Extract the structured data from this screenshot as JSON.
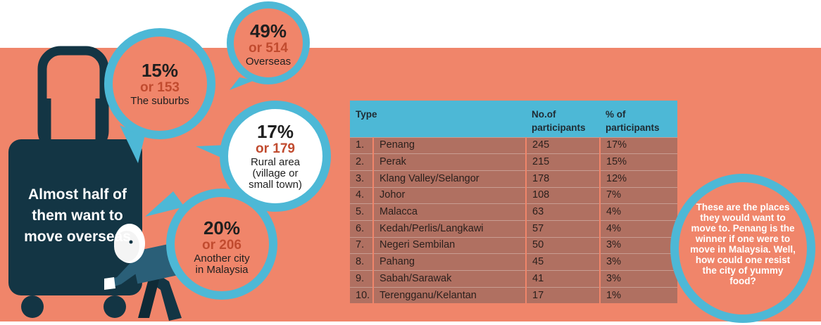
{
  "headline": "Almost half of them want to move overseas",
  "colors": {
    "band": "#f0856a",
    "accent": "#4db8d6",
    "suitcase": "#133544",
    "table_rows": "#b07061"
  },
  "bubbles": {
    "overseas": {
      "pct": "49%",
      "count": "or 514",
      "label": "Overseas"
    },
    "suburbs": {
      "pct": "15%",
      "count": "or 153",
      "label": "The suburbs"
    },
    "rural": {
      "pct": "17%",
      "count": "or 179",
      "label1": "Rural area",
      "label2": "(village or",
      "label3": "small town)"
    },
    "city": {
      "pct": "20%",
      "count": "or 206",
      "label1": "Another city",
      "label2": "in Malaysia"
    }
  },
  "note": "These are the places they would want to move to. Penang is the winner if one were to move in Malaysia. Well, how could one resist the city of yummy food?",
  "chart_data": [
    {
      "type": "pie",
      "categories": [
        "Overseas",
        "Another city in Malaysia",
        "Rural area (village or small town)",
        "The suburbs"
      ],
      "values": [
        49,
        20,
        17,
        15
      ],
      "counts": [
        514,
        206,
        179,
        153
      ]
    },
    {
      "type": "table",
      "columns": [
        "Type",
        "No.of participants",
        "% of participants"
      ],
      "rows": [
        {
          "rank": "1.",
          "type": "Penang",
          "participants": "245",
          "percent": "17%"
        },
        {
          "rank": "2.",
          "type": "Perak",
          "participants": "215",
          "percent": "15%"
        },
        {
          "rank": "3.",
          "type": "Klang Valley/Selangor",
          "participants": "178",
          "percent": "12%"
        },
        {
          "rank": "4.",
          "type": "Johor",
          "participants": "108",
          "percent": "7%"
        },
        {
          "rank": "5.",
          "type": "Malacca",
          "participants": "63",
          "percent": "4%"
        },
        {
          "rank": "6.",
          "type": "Kedah/Perlis/Langkawi",
          "participants": "57",
          "percent": "4%"
        },
        {
          "rank": "7.",
          "type": "Negeri Sembilan",
          "participants": "50",
          "percent": "3%"
        },
        {
          "rank": "8.",
          "type": "Pahang",
          "participants": "45",
          "percent": "3%"
        },
        {
          "rank": "9.",
          "type": "Sabah/Sarawak",
          "participants": "41",
          "percent": "3%"
        },
        {
          "rank": "10.",
          "type": "Terengganu/Kelantan",
          "participants": "17",
          "percent": "1%"
        }
      ]
    }
  ]
}
